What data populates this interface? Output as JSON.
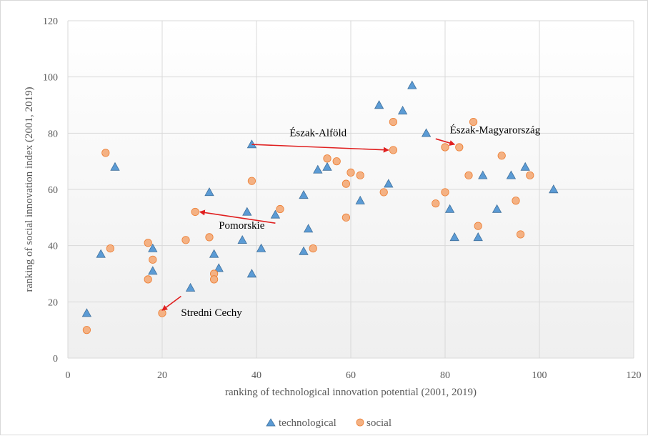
{
  "chart_data": {
    "type": "scatter",
    "xlabel": "ranking of technological innovation potential (2001, 2019)",
    "ylabel": "ranking of social innovation  index (2001, 2019)",
    "xlim": [
      0,
      120
    ],
    "ylim": [
      0,
      120
    ],
    "x_ticks": [
      "0",
      "20",
      "40",
      "60",
      "80",
      "100",
      "120"
    ],
    "y_ticks": [
      "0",
      "20",
      "40",
      "60",
      "80",
      "100",
      "120"
    ],
    "grid": true,
    "legend_position": "bottom",
    "series": [
      {
        "name": "technological",
        "marker": "triangle",
        "color": "#5b9bd5",
        "points": [
          [
            4,
            16
          ],
          [
            7,
            37
          ],
          [
            10,
            68
          ],
          [
            18,
            39
          ],
          [
            18,
            31
          ],
          [
            26,
            25
          ],
          [
            30,
            59
          ],
          [
            31,
            37
          ],
          [
            32,
            32
          ],
          [
            37,
            42
          ],
          [
            38,
            52
          ],
          [
            39,
            76
          ],
          [
            39,
            30
          ],
          [
            41,
            39
          ],
          [
            44,
            51
          ],
          [
            50,
            58
          ],
          [
            50,
            38
          ],
          [
            51,
            46
          ],
          [
            53,
            67
          ],
          [
            55,
            68
          ],
          [
            62,
            56
          ],
          [
            66,
            90
          ],
          [
            68,
            62
          ],
          [
            71,
            88
          ],
          [
            73,
            97
          ],
          [
            76,
            80
          ],
          [
            81,
            53
          ],
          [
            82,
            43
          ],
          [
            87,
            43
          ],
          [
            88,
            65
          ],
          [
            91,
            53
          ],
          [
            94,
            65
          ],
          [
            97,
            68
          ],
          [
            103,
            60
          ]
        ]
      },
      {
        "name": "social",
        "marker": "circle",
        "color": "#f4b183",
        "points": [
          [
            4,
            10
          ],
          [
            8,
            73
          ],
          [
            9,
            39
          ],
          [
            17,
            41
          ],
          [
            17,
            28
          ],
          [
            18,
            35
          ],
          [
            20,
            16
          ],
          [
            25,
            42
          ],
          [
            27,
            52
          ],
          [
            30,
            43
          ],
          [
            31,
            30
          ],
          [
            31,
            28
          ],
          [
            39,
            63
          ],
          [
            45,
            53
          ],
          [
            52,
            39
          ],
          [
            55,
            71
          ],
          [
            57,
            70
          ],
          [
            59,
            62
          ],
          [
            59,
            50
          ],
          [
            60,
            66
          ],
          [
            62,
            65
          ],
          [
            67,
            59
          ],
          [
            69,
            84
          ],
          [
            69,
            74
          ],
          [
            78,
            55
          ],
          [
            80,
            75
          ],
          [
            80,
            59
          ],
          [
            83,
            75
          ],
          [
            85,
            65
          ],
          [
            86,
            84
          ],
          [
            87,
            47
          ],
          [
            92,
            72
          ],
          [
            95,
            56
          ],
          [
            96,
            44
          ],
          [
            98,
            65
          ]
        ]
      }
    ],
    "annotations": [
      {
        "label": "Észak-Alföld",
        "x": 47,
        "y": 79,
        "arrow_from": [
          39,
          76
        ],
        "arrow_to": [
          68,
          74
        ]
      },
      {
        "label": "Észak-Magyarország",
        "x": 81,
        "y": 80,
        "arrow_from": [
          78,
          78
        ],
        "arrow_to": [
          82,
          76
        ]
      },
      {
        "label": "Pomorskie",
        "x": 32,
        "y": 46,
        "arrow_from": [
          44,
          48
        ],
        "arrow_to": [
          28,
          52
        ]
      },
      {
        "label": "Stredni Cechy",
        "x": 24,
        "y": 15,
        "arrow_from": [
          24,
          22
        ],
        "arrow_to": [
          20,
          17
        ]
      }
    ],
    "annotation_color": "#e02020"
  }
}
